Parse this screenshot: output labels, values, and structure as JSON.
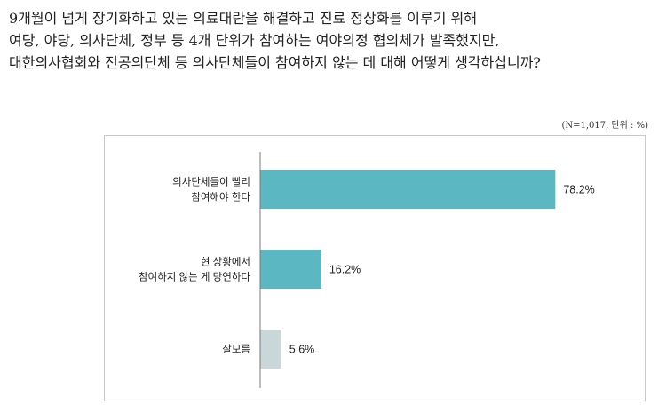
{
  "question": {
    "lines": [
      "9개월이 넘게 장기화하고 있는 의료대란을 해결하고 진료 정상화를 이루기 위해",
      "여당, 야당, 의사단체, 정부 등 4개 단위가 참여하는 여야의정 협의체가 발족했지만,",
      "대한의사협회와 전공의단체 등 의사단체들이 참여하지 않는 데 대해 어떻게 생각하십니까?"
    ]
  },
  "note": "(N=1,017, 단위 : %)",
  "chart_data": {
    "type": "bar",
    "orientation": "horizontal",
    "categories": [
      [
        "의사단체들이 빨리",
        "참여해야 한다"
      ],
      [
        "현 상황에서",
        "참여하지 않는 게 당연하다"
      ],
      [
        "잘모름"
      ]
    ],
    "values": [
      78.2,
      16.2,
      5.6
    ],
    "value_labels": [
      "78.2%",
      "16.2%",
      "5.6%"
    ],
    "colors": [
      "#5bb8c2",
      "#5bb8c2",
      "#c9d7d9"
    ],
    "xlim": [
      0,
      100
    ],
    "grid": false,
    "title": "",
    "xlabel": "",
    "ylabel": ""
  }
}
